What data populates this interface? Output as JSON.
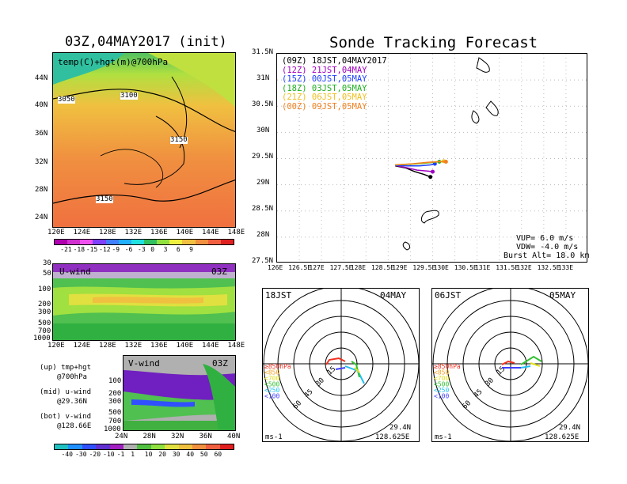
{
  "left": {
    "title": "03Z,04MAY2017 (init)",
    "map_label": "temp(C)+hgt(m)@700hPa",
    "map_lat_ticks": [
      "44N",
      "40N",
      "36N",
      "32N",
      "28N",
      "24N"
    ],
    "lon_ticks": [
      "120E",
      "124E",
      "128E",
      "132E",
      "136E",
      "140E",
      "144E",
      "148E"
    ],
    "contour_labels": [
      "3050",
      "3100",
      "3150",
      "3150"
    ],
    "temp_colorbar": {
      "labels": [
        "-21",
        "-18",
        "-15",
        "-12",
        "-9",
        "-6",
        "-3",
        "0",
        "3",
        "6",
        "9"
      ],
      "colors": [
        "#b000b0",
        "#d030d0",
        "#f050f0",
        "#7f3fff",
        "#3f7fff",
        "#20b0ff",
        "#20e0e0",
        "#30c060",
        "#90e040",
        "#f0f040",
        "#f0c040",
        "#f09040",
        "#f06040",
        "#e02020"
      ]
    },
    "u_wind": {
      "label": "U-wind",
      "time": "03Z",
      "p_ticks": [
        "30",
        "50",
        "100",
        "200",
        "300",
        "500",
        "700",
        "1000"
      ]
    },
    "v_wind": {
      "label": "V-wind",
      "time": "03Z",
      "p_ticks": [
        "100",
        "200",
        "300",
        "500",
        "700",
        "1000"
      ],
      "lat_ticks": [
        "24N",
        "28N",
        "32N",
        "36N",
        "40N"
      ]
    },
    "notes": [
      {
        "a": "(up) tmp+hgt",
        "b": "@700hPa"
      },
      {
        "a": "(mid) u-wind",
        "b": "@29.36N"
      },
      {
        "a": "(bot) v-wind",
        "b": "@128.66E"
      }
    ],
    "wind_colorbar": {
      "labels": [
        "-40",
        "-30",
        "-20",
        "-10",
        "-1",
        "1",
        "10",
        "20",
        "30",
        "40",
        "50",
        "60"
      ],
      "colors": [
        "#20c0c0",
        "#2090ff",
        "#3050ff",
        "#6030d0",
        "#a020c0",
        "#b0b0b0",
        "#50c040",
        "#90e040",
        "#e0e040",
        "#f0c040",
        "#f09040",
        "#f06040",
        "#e02020"
      ]
    }
  },
  "right": {
    "title": "Sonde Tracking Forecast",
    "lat_ticks": [
      "31.5N",
      "31N",
      "30.5N",
      "30N",
      "29.5N",
      "29N",
      "28.5N",
      "28N",
      "27.5N"
    ],
    "lon_ticks": [
      "126E",
      "126.5E",
      "127E",
      "127.5E",
      "128E",
      "128.5E",
      "129E",
      "129.5E",
      "130E",
      "130.5E",
      "131E",
      "131.5E",
      "132E",
      "132.5E",
      "133E"
    ],
    "legend": [
      {
        "text": "(09Z) 18JST,04MAY2017",
        "color": "#000000"
      },
      {
        "text": "(12Z) 21JST,04MAY",
        "color": "#a000c0"
      },
      {
        "text": "(15Z) 00JST,05MAY",
        "color": "#2040ff"
      },
      {
        "text": "(18Z) 03JST,05MAY",
        "color": "#20b020"
      },
      {
        "text": "(21Z) 06JST,05MAY",
        "color": "#f0c020"
      },
      {
        "text": "(00Z) 09JST,05MAY",
        "color": "#f08020"
      }
    ],
    "params": [
      "VUP=  6.0 m/s",
      "VDW= -4.0 m/s",
      "Burst Alt= 18.0 km"
    ]
  },
  "chart_data": [
    {
      "type": "line",
      "title": "Sonde Tracking Forecast",
      "xlim": [
        126,
        133
      ],
      "ylim": [
        27.5,
        31.5
      ],
      "series": [
        {
          "name": "(09Z) 18JST,04MAY2017",
          "color": "#000000",
          "x": [
            128.66,
            128.9,
            129.1,
            129.3,
            129.45
          ],
          "y": [
            29.36,
            29.32,
            29.25,
            29.2,
            29.15
          ]
        },
        {
          "name": "(12Z) 21JST,04MAY",
          "color": "#a000c0",
          "x": [
            128.66,
            128.9,
            129.15,
            129.4,
            129.5
          ],
          "y": [
            29.37,
            29.33,
            29.28,
            29.26,
            29.25
          ]
        },
        {
          "name": "(15Z) 00JST,05MAY",
          "color": "#2040ff",
          "x": [
            128.66,
            128.95,
            129.2,
            129.45,
            129.55
          ],
          "y": [
            29.37,
            29.36,
            29.36,
            29.38,
            29.4
          ]
        },
        {
          "name": "(18Z) 03JST,05MAY",
          "color": "#20b020",
          "x": [
            128.66,
            129.0,
            129.3,
            129.55,
            129.65
          ],
          "y": [
            29.38,
            29.39,
            29.41,
            29.43,
            29.44
          ]
        },
        {
          "name": "(21Z) 06JST,05MAY",
          "color": "#f0c020",
          "x": [
            128.66,
            129.05,
            129.35,
            129.6,
            129.75
          ],
          "y": [
            29.38,
            29.4,
            29.42,
            29.44,
            29.45
          ]
        },
        {
          "name": "(00Z) 09JST,05MAY",
          "color": "#f08020",
          "x": [
            128.66,
            129.05,
            129.4,
            129.65,
            129.8
          ],
          "y": [
            29.38,
            29.4,
            29.43,
            29.44,
            29.44
          ]
        }
      ]
    }
  ],
  "hodo": [
    {
      "left": "18JST",
      "right": "04MAY",
      "rings": [
        "15",
        "30",
        "45",
        "60"
      ],
      "unit": "ms-1",
      "lat": "29.4N",
      "lon": "128.625E",
      "levels": [
        {
          "t": "≥850hPa",
          "c": "#f03020"
        },
        {
          "t": "<850",
          "c": "#f0a020"
        },
        {
          "t": "<700",
          "c": "#e0e020"
        },
        {
          "t": "<500",
          "c": "#30c030"
        },
        {
          "t": "<250",
          "c": "#20c0f0"
        },
        {
          "t": "<100",
          "c": "#4040ff"
        }
      ]
    },
    {
      "left": "06JST",
      "right": "05MAY",
      "rings": [
        "15",
        "30",
        "45",
        "60"
      ],
      "unit": "ms-1",
      "lat": "29.4N",
      "lon": "128.625E",
      "levels": [
        {
          "t": "≥850hPa",
          "c": "#f03020"
        },
        {
          "t": "<850",
          "c": "#f0a020"
        },
        {
          "t": "<700",
          "c": "#e0e020"
        },
        {
          "t": "<500",
          "c": "#30c030"
        },
        {
          "t": "<250",
          "c": "#20c0f0"
        },
        {
          "t": "<100",
          "c": "#4040ff"
        }
      ]
    }
  ]
}
